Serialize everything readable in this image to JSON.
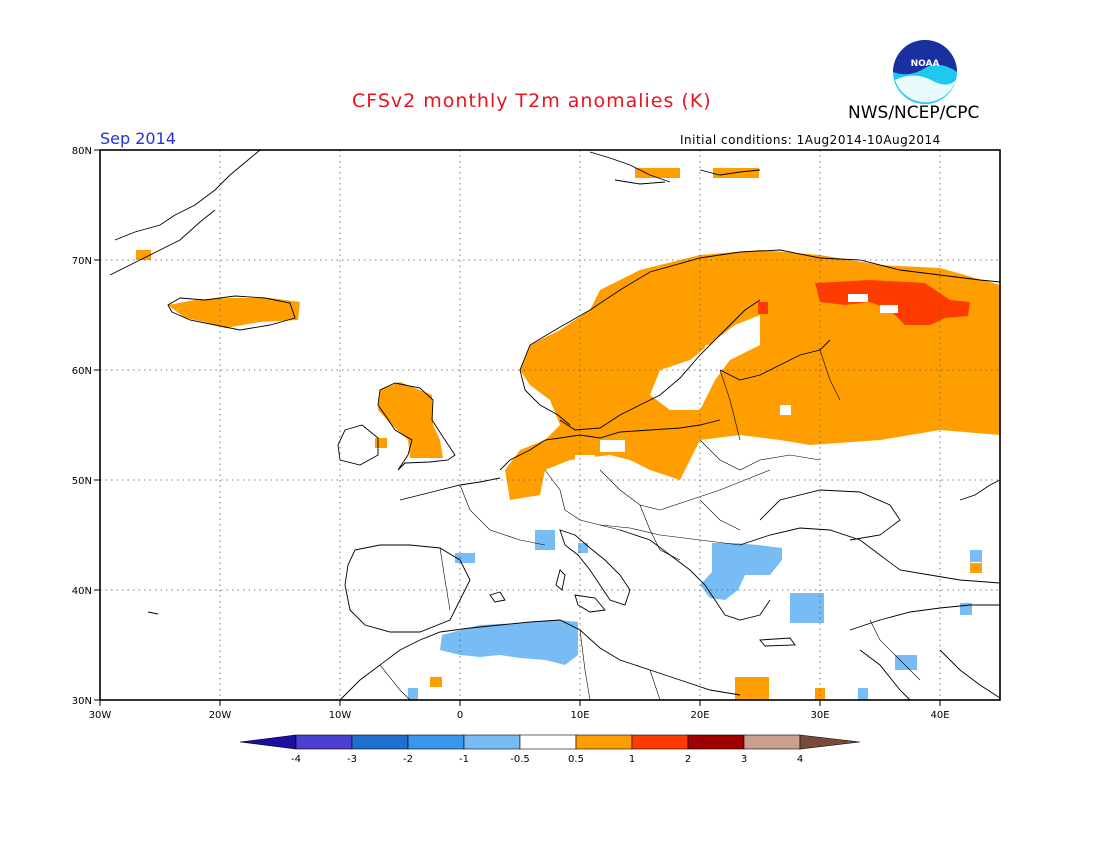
{
  "title": "CFSv2 monthly T2m anomalies (K)",
  "agency": "NWS/NCEP/CPC",
  "logo_text": "NOAA",
  "valid_month": "Sep 2014",
  "initial_conditions": "Initial conditions: 1Aug2014-10Aug2014",
  "axes": {
    "lat_labels": [
      "80N",
      "70N",
      "60N",
      "50N",
      "40N",
      "30N"
    ],
    "lon_labels": [
      "30W",
      "20W",
      "10W",
      "0",
      "10E",
      "20E",
      "30E",
      "40E"
    ]
  },
  "colorbar": {
    "labels": [
      "-4",
      "-3",
      "-2",
      "-1",
      "-0.5",
      "0.5",
      "1",
      "2",
      "3",
      "4"
    ],
    "colors": [
      "#1a0fa0",
      "#4a3fd0",
      "#1f6fd0",
      "#3a95ee",
      "#78bcf6",
      "#ffffff",
      "#ff9e00",
      "#ff3c00",
      "#a00000",
      "#c9a08e",
      "#7a4a3a"
    ]
  },
  "colors": {
    "title": "#e8141c",
    "month": "#2233dd",
    "warm": "#ff9e00",
    "hot": "#ff3c00",
    "cool": "#78bcf6"
  }
}
